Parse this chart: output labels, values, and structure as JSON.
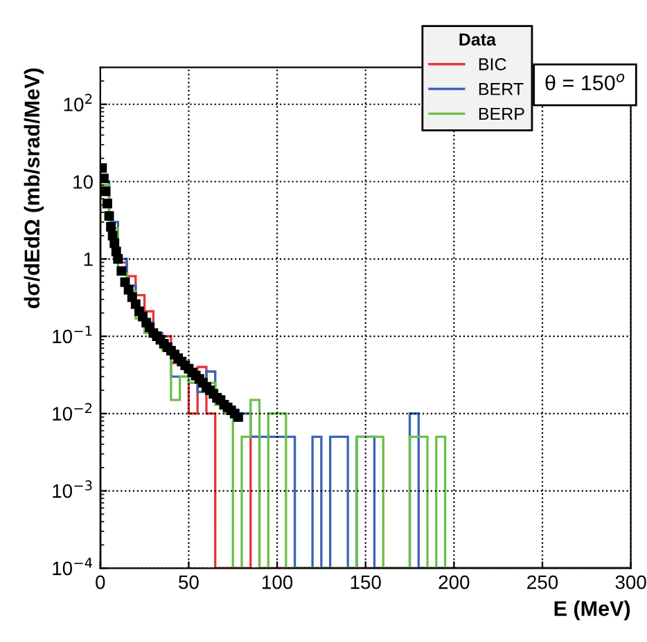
{
  "chart_data": {
    "type": "histogram",
    "xlabel": "E (MeV)",
    "ylabel": "dσ/dEdΩ (mb/srad/MeV)",
    "legend_title": "Data",
    "annotations": [
      "θ = 150$^{o}$"
    ],
    "bins": [
      0,
      5,
      10,
      15,
      20,
      25,
      30,
      35,
      40,
      45,
      50,
      55,
      60,
      65,
      70,
      75,
      80,
      85,
      90,
      95,
      100,
      105,
      110,
      115,
      120,
      125,
      130,
      135,
      140,
      145,
      150,
      155,
      160,
      165,
      170,
      175,
      180,
      185,
      190,
      195,
      200,
      205,
      210,
      215,
      220,
      225,
      230,
      235,
      240,
      245,
      250,
      255,
      260,
      265,
      270,
      275,
      280,
      285,
      290,
      295,
      300
    ],
    "series": [
      {
        "type": "scatter",
        "color": "#000000",
        "marker": "square",
        "x": [
          1,
          2,
          3,
          4,
          5,
          6,
          7,
          8,
          9,
          10,
          12,
          14,
          16,
          18,
          20,
          22,
          24,
          26,
          28,
          30,
          32,
          34,
          36,
          38,
          40,
          42,
          44,
          46,
          48,
          50,
          52,
          54,
          56,
          58,
          60,
          62,
          64,
          66,
          68,
          70,
          72,
          74,
          76,
          78
        ],
        "values": [
          15,
          11,
          7.5,
          5.2,
          3.6,
          2.6,
          2.0,
          1.6,
          1.25,
          1.0,
          0.7,
          0.5,
          0.4,
          0.32,
          0.26,
          0.21,
          0.18,
          0.15,
          0.13,
          0.11,
          0.1,
          0.09,
          0.08,
          0.072,
          0.065,
          0.058,
          0.052,
          0.047,
          0.042,
          0.038,
          0.034,
          0.031,
          0.028,
          0.025,
          0.022,
          0.02,
          0.018,
          0.016,
          0.015,
          0.013,
          0.012,
          0.011,
          0.01,
          0.009
        ]
      },
      {
        "name": "BIC",
        "color": "#e8343a",
        "values": [
          8,
          2.5,
          0.9,
          0.6,
          0.34,
          0.21,
          0.1,
          0.1,
          0.045,
          0.045,
          0.01,
          0.04,
          0.01,
          null,
          null,
          null,
          null,
          0.005,
          null,
          null,
          null,
          null,
          null,
          null,
          null,
          null,
          null,
          null,
          null,
          null,
          null,
          null,
          null,
          null,
          null,
          null,
          null,
          null,
          null,
          null,
          null,
          null,
          null,
          null,
          null,
          null,
          null,
          null,
          null,
          null,
          null,
          null,
          null,
          null,
          null,
          null,
          null,
          null,
          null,
          null
        ]
      },
      {
        "name": "BERT",
        "color": "#3c64b4",
        "values": [
          10,
          3,
          1,
          0.45,
          0.19,
          0.15,
          0.11,
          0.08,
          0.03,
          0.03,
          0.025,
          0.019,
          0.035,
          0.016,
          0.012,
          0.01,
          0.01,
          0.005,
          0.005,
          0.005,
          0.005,
          0.005,
          null,
          null,
          0.005,
          null,
          0.005,
          0.005,
          null,
          0.005,
          0.005,
          null,
          null,
          null,
          null,
          0.01,
          null,
          null,
          null,
          null,
          null,
          null,
          null,
          null,
          null,
          null,
          null,
          null,
          null,
          null,
          null,
          null,
          null,
          null,
          null,
          null,
          null,
          null,
          null,
          null
        ]
      },
      {
        "name": "BERP",
        "color": "#6cc04a",
        "values": [
          9,
          2.5,
          0.65,
          0.38,
          0.17,
          0.11,
          0.09,
          0.066,
          0.015,
          0.03,
          0.025,
          0.025,
          0.025,
          0.013,
          0.01,
          null,
          0.005,
          0.015,
          null,
          0.01,
          0.01,
          null,
          null,
          null,
          null,
          null,
          null,
          null,
          null,
          0.005,
          0.005,
          0.005,
          null,
          null,
          null,
          0.005,
          0.005,
          null,
          0.005,
          null,
          null,
          null,
          null,
          null,
          null,
          null,
          null,
          null,
          null,
          null,
          null,
          null,
          null,
          null,
          null,
          null,
          null,
          null,
          null,
          null
        ]
      }
    ],
    "log": "y",
    "xlim": [
      0,
      300
    ],
    "ylim": [
      0.0001,
      300
    ],
    "xticks": [
      0,
      50,
      100,
      150,
      200,
      250,
      300
    ],
    "yticks": [
      {
        "value": 0.0001,
        "label": "10$^{−4}$"
      },
      {
        "value": 0.001,
        "label": "10$^{−3}$"
      },
      {
        "value": 0.01,
        "label": "10$^{−2}$"
      },
      {
        "value": 0.1,
        "label": "10$^{−1}$"
      },
      1,
      10,
      {
        "value": 100,
        "label": "10$^{2}$"
      }
    ],
    "grid": true,
    "legend": "top right"
  }
}
